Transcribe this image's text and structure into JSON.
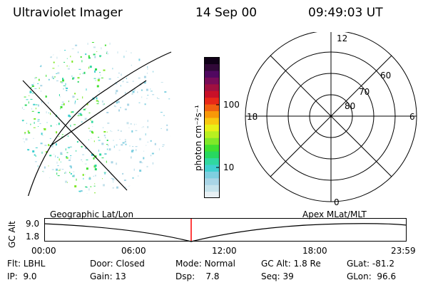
{
  "header": {
    "instrument": "Ultraviolet Imager",
    "date": "14 Sep 00",
    "time": "09:49:03 UT"
  },
  "colorbar": {
    "unit_label": "photon cm⁻²s⁻¹",
    "ticks": [
      "100",
      "10"
    ],
    "colors": [
      "#e8f0f4",
      "#c6e3ec",
      "#a9d5e6",
      "#7fcfe0",
      "#40d0d0",
      "#30d8a0",
      "#28d860",
      "#40e030",
      "#80e828",
      "#b8f020",
      "#e8f018",
      "#f8c810",
      "#f89808",
      "#f06010",
      "#e82818",
      "#c81028",
      "#a01040",
      "#780c58",
      "#500860",
      "#300838",
      "#100018"
    ]
  },
  "polar": {
    "mlt_labels": {
      "top": "12",
      "bottom": "0",
      "left": "18",
      "right": "6"
    },
    "lat_labels": [
      "80",
      "70",
      "60"
    ]
  },
  "timeline": {
    "left_label": "Geographic Lat/Lon",
    "right_label": "Apex  MLat/MLT",
    "y_title": "GC Alt",
    "y_ticks": [
      "9.0",
      "1.8"
    ],
    "x_ticks": [
      "00:00",
      "06:00",
      "12:00",
      "18:00",
      "23:59"
    ],
    "marker_color": "#ff0000"
  },
  "info": {
    "flt": {
      "label": "Flt:",
      "value": "LBHL"
    },
    "ip": {
      "label": "IP:",
      "value": "9.0"
    },
    "door": {
      "label": "Door:",
      "value": "Closed"
    },
    "gain": {
      "label": "Gain:",
      "value": "13"
    },
    "mode": {
      "label": "Mode:",
      "value": "Normal"
    },
    "dsp": {
      "label": "Dsp:",
      "value": "7.8"
    },
    "gcalt": {
      "label": "GC Alt:",
      "value": "1.8 Re"
    },
    "seq": {
      "label": "Seq:",
      "value": "39"
    },
    "glat": {
      "label": "GLat:",
      "value": "-81.2"
    },
    "glon": {
      "label": "GLon:",
      "value": "96.6"
    }
  }
}
